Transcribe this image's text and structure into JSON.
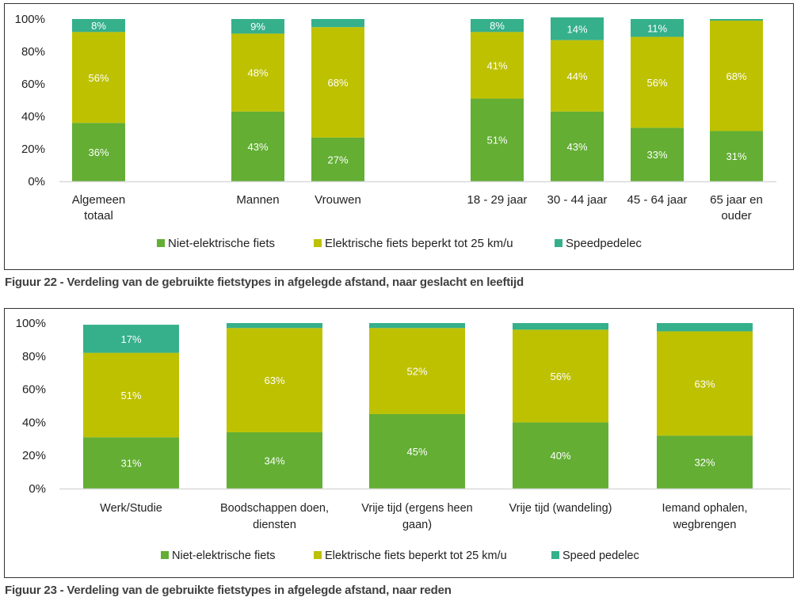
{
  "colors": {
    "niet_elektrisch": "#63AE33",
    "elektrisch": "#BEC100",
    "speedpedelec": "#35B08B",
    "axis": "#d9d9d9",
    "label_text": "#ffffff"
  },
  "captions": {
    "fig22": "Figuur 22 - Verdeling van de gebruikte fietstypes in afgelegde afstand, naar geslacht en leeftijd",
    "fig23": "Figuur 23 - Verdeling van de gebruikte fietstypes in afgelegde afstand, naar reden"
  },
  "chart_data": [
    {
      "type": "bar",
      "stacked": true,
      "title": "",
      "xlabel": "",
      "ylabel": "",
      "ylim": [
        0,
        100
      ],
      "yticks": [
        "0%",
        "20%",
        "40%",
        "60%",
        "80%",
        "100%"
      ],
      "grid": false,
      "legend": "bottom",
      "categories": [
        [
          "Algemeen",
          "totaal"
        ],
        [
          "Mannen"
        ],
        [
          "Vrouwen"
        ],
        [
          "18 - 29 jaar"
        ],
        [
          "30 - 44 jaar"
        ],
        [
          "45 - 64 jaar"
        ],
        [
          "65 jaar en",
          "ouder"
        ]
      ],
      "series": [
        {
          "name": "Niet-elektrische fiets",
          "key": "niet_elektrisch",
          "values": [
            36,
            43,
            27,
            51,
            43,
            33,
            31
          ],
          "labels": [
            "36%",
            "43%",
            "27%",
            "51%",
            "43%",
            "33%",
            "31%"
          ]
        },
        {
          "name": "Elektrische fiets beperkt tot 25 km/u",
          "key": "elektrisch",
          "values": [
            56,
            48,
            68,
            41,
            44,
            56,
            68
          ],
          "labels": [
            "56%",
            "48%",
            "68%",
            "41%",
            "44%",
            "56%",
            "68%"
          ]
        },
        {
          "name": "Speedpedelec",
          "key": "speedpedelec",
          "values": [
            8,
            9,
            5,
            8,
            14,
            11,
            1
          ],
          "labels": [
            "8%",
            "9%",
            "",
            "8%",
            "14%",
            "11%",
            ""
          ]
        }
      ]
    },
    {
      "type": "bar",
      "stacked": true,
      "title": "",
      "xlabel": "",
      "ylabel": "",
      "ylim": [
        0,
        100
      ],
      "yticks": [
        "0%",
        "20%",
        "40%",
        "60%",
        "80%",
        "100%"
      ],
      "grid": false,
      "legend": "bottom",
      "categories": [
        [
          "Werk/Studie"
        ],
        [
          "Boodschappen doen,",
          "diensten"
        ],
        [
          "Vrije tijd (ergens heen",
          "gaan)"
        ],
        [
          "Vrije tijd (wandeling)"
        ],
        [
          "Iemand ophalen,",
          "wegbrengen"
        ]
      ],
      "series": [
        {
          "name": "Niet-elektrische fiets",
          "key": "niet_elektrisch",
          "values": [
            31,
            34,
            45,
            40,
            32
          ],
          "labels": [
            "31%",
            "34%",
            "45%",
            "40%",
            "32%"
          ]
        },
        {
          "name": "Elektrische fiets beperkt tot 25 km/u",
          "key": "elektrisch",
          "values": [
            51,
            63,
            52,
            56,
            63
          ],
          "labels": [
            "51%",
            "63%",
            "52%",
            "56%",
            "63%"
          ]
        },
        {
          "name": "Speed pedelec",
          "key": "speedpedelec",
          "values": [
            17,
            3,
            3,
            4,
            5
          ],
          "labels": [
            "17%",
            "",
            "",
            "",
            ""
          ]
        }
      ]
    }
  ]
}
